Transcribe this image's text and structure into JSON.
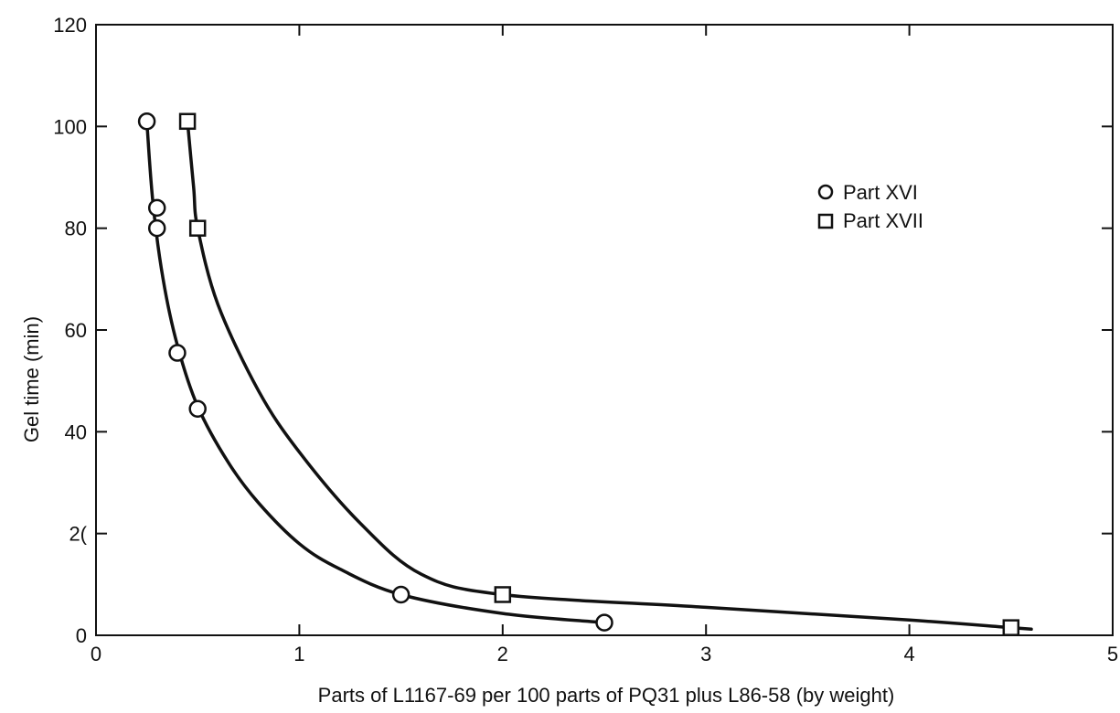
{
  "chart_data": {
    "type": "scatter",
    "title": "",
    "xlabel": "Parts of L1167-69 per 100 parts of PQ31 plus L86-58 (by weight)",
    "ylabel": "Gel time (min)",
    "xlim": [
      0,
      5
    ],
    "ylim": [
      0,
      120
    ],
    "x_ticks": [
      "0",
      "1",
      "2",
      "3",
      "4",
      "5"
    ],
    "y_ticks": [
      "0",
      "2(",
      "40",
      "60",
      "80",
      "100",
      "120"
    ],
    "grid": false,
    "legend_position": "top-right",
    "series": [
      {
        "name": "Part XVI",
        "marker": "circle",
        "points": [
          {
            "x": 0.25,
            "y": 101
          },
          {
            "x": 0.3,
            "y": 84
          },
          {
            "x": 0.3,
            "y": 80
          },
          {
            "x": 0.4,
            "y": 55.5
          },
          {
            "x": 0.5,
            "y": 44.5
          },
          {
            "x": 1.5,
            "y": 8
          },
          {
            "x": 2.5,
            "y": 2.5
          }
        ],
        "curve": [
          {
            "x": 0.25,
            "y": 101
          },
          {
            "x": 0.28,
            "y": 85
          },
          {
            "x": 0.33,
            "y": 70
          },
          {
            "x": 0.4,
            "y": 57
          },
          {
            "x": 0.5,
            "y": 45
          },
          {
            "x": 0.65,
            "y": 34
          },
          {
            "x": 0.8,
            "y": 26
          },
          {
            "x": 1.0,
            "y": 18
          },
          {
            "x": 1.2,
            "y": 13
          },
          {
            "x": 1.5,
            "y": 8
          },
          {
            "x": 2.0,
            "y": 4.3
          },
          {
            "x": 2.5,
            "y": 2.5
          }
        ]
      },
      {
        "name": "Part XVII",
        "marker": "square",
        "points": [
          {
            "x": 0.45,
            "y": 101
          },
          {
            "x": 0.5,
            "y": 80
          },
          {
            "x": 2.0,
            "y": 8
          },
          {
            "x": 4.5,
            "y": 1.5
          }
        ],
        "curve": [
          {
            "x": 0.45,
            "y": 101
          },
          {
            "x": 0.48,
            "y": 88
          },
          {
            "x": 0.5,
            "y": 80
          },
          {
            "x": 0.6,
            "y": 65
          },
          {
            "x": 0.8,
            "y": 48
          },
          {
            "x": 1.0,
            "y": 36
          },
          {
            "x": 1.3,
            "y": 22
          },
          {
            "x": 1.6,
            "y": 12
          },
          {
            "x": 2.0,
            "y": 8
          },
          {
            "x": 3.0,
            "y": 5.5
          },
          {
            "x": 4.0,
            "y": 3
          },
          {
            "x": 4.5,
            "y": 1.5
          },
          {
            "x": 4.6,
            "y": 1.2
          }
        ]
      }
    ],
    "colors": {
      "ink": "#111111",
      "background": "#ffffff"
    }
  }
}
